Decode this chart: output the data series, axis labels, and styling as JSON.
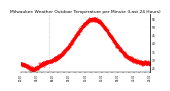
{
  "title": "Milwaukee Weather Outdoor Temperature per Minute (Last 24 Hours)",
  "line_color": "red",
  "bg_color": "white",
  "ylim": [
    23,
    58
  ],
  "yticks": [
    25,
    30,
    35,
    40,
    45,
    50,
    55
  ],
  "vline_x": 0.22,
  "title_fontsize": 3.2,
  "marker_size": 0.6
}
